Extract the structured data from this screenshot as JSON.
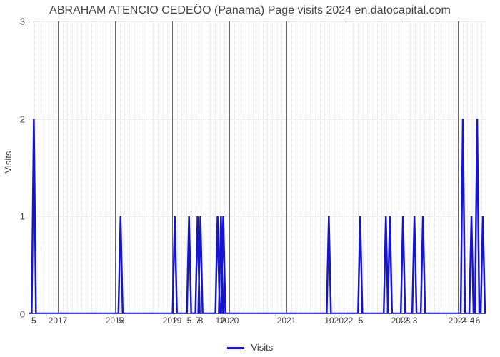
{
  "chart": {
    "type": "line",
    "title": "ABRAHAM ATENCIO CEDEÖO (Panama) Page visits 2024 en.datocapital.com",
    "title_fontsize": 16,
    "title_color": "#444444",
    "background_color": "#ffffff",
    "grid_color": "#e3e3e3",
    "grid_style": "dotted",
    "axis_color": "#555555",
    "series_color": "#1414d2",
    "series_line_width": 2.5,
    "y_axis_label": "Visits",
    "x_domain_years": [
      2016.5,
      2024.5
    ],
    "ylim": [
      0,
      3
    ],
    "y_ticks": [
      0,
      1,
      2,
      3
    ],
    "x_year_ticks": [
      2017,
      2018,
      2019,
      2020,
      2021,
      2022,
      2023,
      2024
    ],
    "minor_per_year": 12,
    "legend_label": "Visits",
    "spikes": [
      {
        "year": 2016.58,
        "value": 2,
        "label": "5"
      },
      {
        "year": 2016.7,
        "value": 0,
        "label": ""
      },
      {
        "year": 2018.1,
        "value": 1,
        "label": "5"
      },
      {
        "year": 2019.05,
        "value": 1,
        "label": "2"
      },
      {
        "year": 2019.3,
        "value": 1,
        "label": "5"
      },
      {
        "year": 2019.45,
        "value": 1,
        "label": "7"
      },
      {
        "year": 2019.5,
        "value": 1,
        "label": "8"
      },
      {
        "year": 2019.8,
        "value": 1,
        "label": "1"
      },
      {
        "year": 2019.86,
        "value": 1,
        "label": "1"
      },
      {
        "year": 2019.9,
        "value": 1,
        "label": "2"
      },
      {
        "year": 2021.75,
        "value": 1,
        "label": "10"
      },
      {
        "year": 2022.3,
        "value": 1,
        "label": "5"
      },
      {
        "year": 2022.75,
        "value": 1,
        "label": ""
      },
      {
        "year": 2022.82,
        "value": 1,
        "label": ""
      },
      {
        "year": 2023.05,
        "value": 1,
        "label": "12"
      },
      {
        "year": 2023.25,
        "value": 1,
        "label": "3"
      },
      {
        "year": 2023.4,
        "value": 1,
        "label": ""
      },
      {
        "year": 2024.1,
        "value": 2,
        "label": "2"
      },
      {
        "year": 2024.25,
        "value": 1,
        "label": "4"
      },
      {
        "year": 2024.35,
        "value": 2,
        "label": "6"
      },
      {
        "year": 2024.45,
        "value": 1,
        "label": ""
      }
    ]
  }
}
